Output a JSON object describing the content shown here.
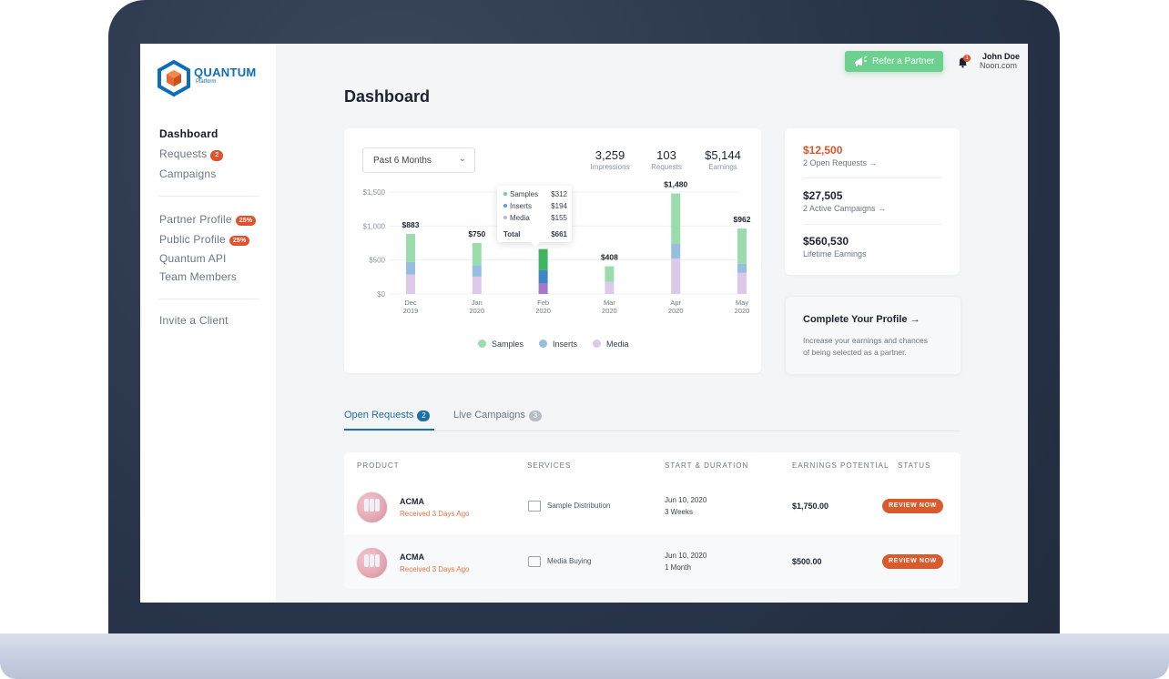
{
  "brand": {
    "name": "QUANTUM",
    "sub": "Platform",
    "color": "#0f6cb6"
  },
  "sidebar": {
    "items": [
      {
        "label": "Dashboard"
      },
      {
        "label": "Requests",
        "badge": "2"
      },
      {
        "label": "Campaigns"
      },
      {
        "label": "Partner Profile",
        "badge": "25%"
      },
      {
        "label": "Public Profile",
        "badge": "25%"
      },
      {
        "label": "Quantum API"
      },
      {
        "label": "Team Members"
      },
      {
        "label": "Invite a Client"
      }
    ]
  },
  "header": {
    "refer_label": "Refer a Partner",
    "notifications": "1",
    "user_name": "John Doe",
    "user_org": "Noon.com"
  },
  "page": {
    "title": "Dashboard"
  },
  "chart_card": {
    "range": "Past 6 Months",
    "stats": [
      {
        "value": "3,259",
        "label": "Impressions"
      },
      {
        "value": "103",
        "label": "Requests"
      },
      {
        "value": "$5,144",
        "label": "Earnings"
      }
    ],
    "tooltip": {
      "rows": [
        {
          "label": "Samples",
          "value": "$312"
        },
        {
          "label": "Inserts",
          "value": "$194"
        },
        {
          "label": "Media",
          "value": "$155"
        }
      ],
      "total_label": "Total",
      "total_value": "$661"
    }
  },
  "chart_data": {
    "type": "bar",
    "stacked": true,
    "categories": [
      "Dec 2019",
      "Jan 2020",
      "Feb 2020",
      "Mar 2020",
      "Apr 2020",
      "May 2020"
    ],
    "category_lines": [
      [
        "Dec",
        "2019"
      ],
      [
        "Jan",
        "2020"
      ],
      [
        "Feb",
        "2020"
      ],
      [
        "Mar",
        "2020"
      ],
      [
        "Apr",
        "2020"
      ],
      [
        "May",
        "2020"
      ]
    ],
    "totals_labels": [
      "$883",
      "$750",
      "",
      "$408",
      "$1,480",
      "$962"
    ],
    "series": [
      {
        "name": "Samples",
        "color": "#9bdcad",
        "values": [
          413,
          325,
          312,
          228,
          734,
          516
        ]
      },
      {
        "name": "Inserts",
        "color": "#98bedf",
        "values": [
          185,
          170,
          194,
          0,
          226,
          136
        ]
      },
      {
        "name": "Media",
        "color": "#dcc8e8",
        "values": [
          285,
          255,
          155,
          180,
          520,
          310
        ]
      }
    ],
    "highlight_index": 2,
    "highlight_colors": [
      "#3fb561",
      "#3f86c6",
      "#a878c8"
    ],
    "yticks": [
      "$1,500",
      "$1,000",
      "$500",
      "$0"
    ],
    "ytick_values": [
      1500,
      1000,
      500,
      0
    ],
    "ylim": [
      0,
      1500
    ],
    "legend_position": "bottom",
    "grid": true
  },
  "summary_card": {
    "items": [
      {
        "value": "$12,500",
        "sub": "2 Open Requests →",
        "color": "#e0522c"
      },
      {
        "value": "$27,505",
        "sub": "2 Active Campaigns →",
        "color": "#1d2430"
      },
      {
        "value": "$560,530",
        "sub": "Lifetime Earnings",
        "color": "#1d2430"
      }
    ]
  },
  "profile_card": {
    "title": "Complete Your Profile",
    "arrow": "→",
    "text_line1": "Increase your earnings and chances",
    "text_line2": "of being selected as a partner."
  },
  "tabs": [
    {
      "label": "Open Requests",
      "count": "2",
      "active": true
    },
    {
      "label": "Live Campaigns",
      "count": "3",
      "active": false
    }
  ],
  "table": {
    "headers": [
      "PRODUCT",
      "SERVICES",
      "START & DURATION",
      "EARNINGS POTENTIAL",
      "STATUS"
    ],
    "rows": [
      {
        "product": "ACMA",
        "received": "Received 3 Days Ago",
        "service": "Sample Distribution",
        "date": "Jun 10, 2020",
        "duration": "3 Weeks",
        "earnings": "$1,750.00",
        "status": "REVIEW NOW"
      },
      {
        "product": "ACMA",
        "received": "Received 3 Days Ago",
        "service": "Media Buying",
        "date": "Jun 10, 2020",
        "duration": "1 Month",
        "earnings": "$500.00",
        "status": "REVIEW NOW"
      }
    ]
  }
}
